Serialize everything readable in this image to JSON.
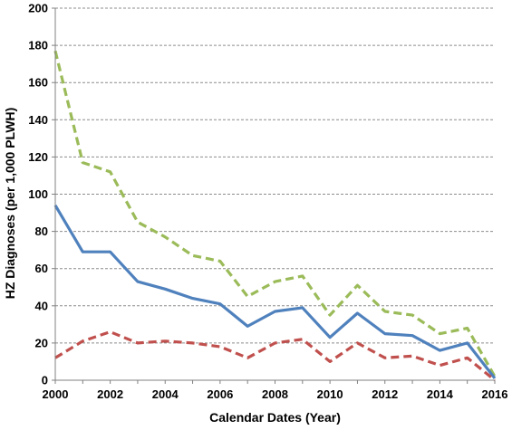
{
  "chart_data": {
    "type": "line",
    "xlabel": "Calendar Dates (Year)",
    "ylabel": "HZ Diagnoses (per 1,000 PLWH)",
    "xlim": [
      2000,
      2016
    ],
    "ylim": [
      0,
      200
    ],
    "x_ticks": [
      "2000",
      "2002",
      "2004",
      "2006",
      "2008",
      "2010",
      "2012",
      "2014",
      "2016"
    ],
    "y_ticks": [
      "0",
      "20",
      "40",
      "60",
      "80",
      "100",
      "120",
      "140",
      "160",
      "180",
      "200"
    ],
    "grid": "horizontal dashed",
    "x": [
      2000,
      2001,
      2002,
      2003,
      2004,
      2005,
      2006,
      2007,
      2008,
      2009,
      2010,
      2011,
      2012,
      2013,
      2014,
      2015,
      2016
    ],
    "series": [
      {
        "color": "#9BBB59",
        "style": "dashed",
        "values": [
          177,
          117,
          112,
          85,
          77,
          67,
          64,
          45,
          53,
          56,
          35,
          51,
          37,
          35,
          25,
          28,
          2
        ]
      },
      {
        "color": "#4F81BD",
        "style": "solid",
        "values": [
          94,
          69,
          69,
          53,
          49,
          44,
          41,
          29,
          37,
          39,
          23,
          36,
          25,
          24,
          16,
          20,
          1
        ]
      },
      {
        "color": "#C0504D",
        "style": "dashed",
        "values": [
          12,
          21,
          26,
          20,
          21,
          20,
          18,
          12,
          20,
          22,
          10,
          20,
          12,
          13,
          8,
          12,
          0
        ]
      }
    ]
  }
}
